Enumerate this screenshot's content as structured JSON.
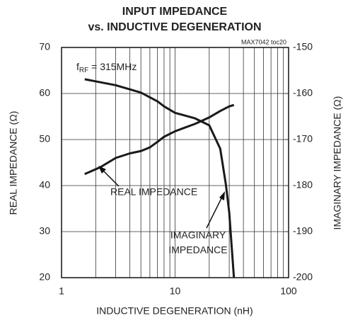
{
  "chart_data": {
    "type": "line",
    "title_lines": [
      "INPUT IMPEDANCE",
      "vs. INDUCTIVE DEGENERATION"
    ],
    "x_label": "INDUCTIVE DEGENERATION (nH)",
    "y_label": "REAL IMPEDANCE (Ω)",
    "y2_label": "IMAGINARY IMPEDANCE (Ω)",
    "annotations": {
      "code": "MAX7042 toc20",
      "freq_f": "f",
      "freq_sub": "RF",
      "freq_rest": " = 315MHz",
      "real_label": "REAL IMPEDANCE",
      "imag_label_lines": [
        "IMAGINARY",
        "IMPEDANCE"
      ]
    },
    "xscale": "log",
    "xlim": [
      1,
      100
    ],
    "xticks": [
      1,
      10,
      100
    ],
    "xgrid_minor": [
      2,
      3,
      4,
      5,
      6,
      7,
      8,
      9,
      20,
      30,
      40,
      50,
      60,
      70,
      80,
      90
    ],
    "ylim": [
      20,
      70
    ],
    "yticks": [
      20,
      30,
      40,
      50,
      60,
      70
    ],
    "y2lim": [
      -200,
      -150
    ],
    "y2ticks": [
      -200,
      -190,
      -180,
      -170,
      -160,
      -150
    ],
    "grid": true,
    "series": [
      {
        "name": "REAL IMPEDANCE",
        "color": "#1a1a1a",
        "axis": "y",
        "x": [
          1.6,
          2.2,
          3,
          4,
          5,
          6,
          7,
          8,
          10,
          15,
          20,
          25,
          30,
          33
        ],
        "values": [
          42.5,
          44,
          46,
          47,
          47.5,
          48.3,
          49.5,
          50.6,
          51.8,
          53.4,
          54.8,
          56.2,
          57.2,
          57.5
        ]
      },
      {
        "name": "IMAGINARY IMPEDANCE",
        "color": "#1a1a1a",
        "axis": "y2",
        "x": [
          1.6,
          3,
          5,
          7,
          8,
          10,
          15,
          20,
          25,
          28,
          30,
          33
        ],
        "values": [
          -156.9,
          -158.2,
          -159.8,
          -161.7,
          -162.8,
          -164.2,
          -165.4,
          -166.9,
          -172,
          -179.7,
          -185.8,
          -200
        ]
      }
    ]
  }
}
